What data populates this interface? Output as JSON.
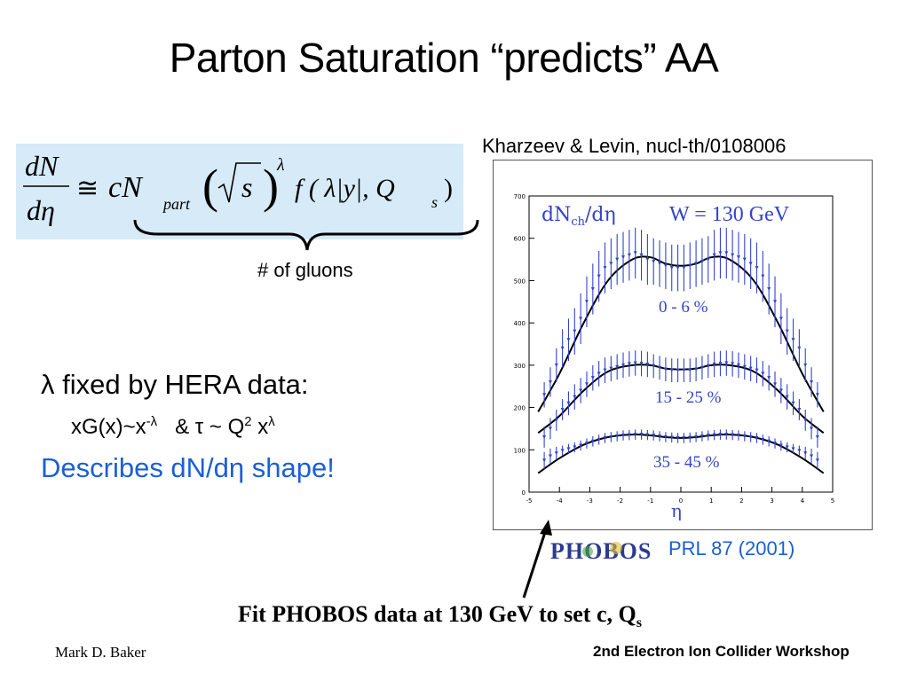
{
  "slide": {
    "title": "Parton Saturation “predicts” AA",
    "citation": "Kharzeev & Levin, nucl-th/0108006",
    "brace_label": "# of gluons",
    "lambda_text": "λ fixed by HERA data:",
    "xg_main": "xG(x)~x",
    "xg_sup": "-λ",
    "xg_mid": "& τ ~ Q",
    "xg_sup2": "2",
    "xg_tail": "x",
    "xg_sup3": "λ",
    "describes_text": "Describes dN/dη shape!",
    "prl_ref": "PRL 87 (2001)",
    "fit_main": "Fit PHOBOS data at 130 GeV to set c, Q",
    "fit_sub": "s",
    "author": "Mark D. Baker",
    "workshop": "2nd Electron Ion Collider Workshop",
    "logo_text": "PHOBOS"
  },
  "formula": {
    "num": "dN",
    "den": "dη",
    "approx": "≅",
    "cN": "cN",
    "part": "part",
    "sqrt_s": "s",
    "lambda": "λ",
    "f_args": "f ( λ|y|, Q",
    "Qs_sub": "s",
    "close": ")"
  },
  "colors": {
    "accent_blue": "#1a5fd6",
    "formula_bg": "#d6eaf8",
    "plot_data": "#3344cc",
    "plot_fit": "#000000"
  },
  "chart_data": {
    "type": "scatter",
    "title": "dNch/dη",
    "title_main": "dN",
    "title_sub": "ch",
    "title_tail": "/dη",
    "energy_label": "W = 130 GeV",
    "xlabel": "η",
    "ylabel": "",
    "xlim": [
      -5,
      5
    ],
    "ylim": [
      0,
      700
    ],
    "xticks": [
      -5,
      -4,
      -3,
      -2,
      -1,
      0,
      1,
      2,
      3,
      4,
      5
    ],
    "yticks": [
      0,
      100,
      200,
      300,
      400,
      500,
      600,
      700
    ],
    "series": [
      {
        "name": "0 - 6 %",
        "x": [
          -4.5,
          -4.3,
          -4.1,
          -3.9,
          -3.7,
          -3.5,
          -3.3,
          -3.1,
          -2.9,
          -2.7,
          -2.5,
          -2.3,
          -2.1,
          -1.9,
          -1.7,
          -1.5,
          -1.3,
          -1.1,
          -0.9,
          -0.7,
          -0.5,
          -0.3,
          -0.1,
          0.1,
          0.3,
          0.5,
          0.7,
          0.9,
          1.1,
          1.3,
          1.5,
          1.7,
          1.9,
          2.1,
          2.3,
          2.5,
          2.7,
          2.9,
          3.1,
          3.3,
          3.5,
          3.7,
          3.9,
          4.1,
          4.3,
          4.5
        ],
        "y": [
          230,
          260,
          300,
          340,
          360,
          380,
          410,
          450,
          480,
          510,
          530,
          540,
          550,
          555,
          560,
          565,
          560,
          550,
          545,
          540,
          535,
          530,
          530,
          530,
          535,
          540,
          545,
          550,
          560,
          565,
          565,
          560,
          555,
          550,
          540,
          530,
          510,
          480,
          450,
          410,
          380,
          360,
          340,
          300,
          260,
          230
        ],
        "err": [
          30,
          35,
          40,
          45,
          50,
          55,
          60,
          60,
          60,
          60,
          60,
          60,
          60,
          60,
          60,
          60,
          60,
          60,
          55,
          55,
          55,
          55,
          55,
          55,
          55,
          55,
          55,
          55,
          60,
          60,
          60,
          60,
          60,
          60,
          60,
          60,
          60,
          60,
          60,
          60,
          55,
          50,
          45,
          40,
          35,
          30
        ],
        "fit_x": [
          -4.7,
          -4.0,
          -3.2,
          -2.4,
          -1.6,
          -1.0,
          -0.5,
          0.0,
          0.5,
          1.0,
          1.6,
          2.4,
          3.2,
          4.0,
          4.7
        ],
        "fit_y": [
          190,
          280,
          400,
          500,
          550,
          555,
          540,
          535,
          540,
          555,
          550,
          500,
          400,
          280,
          190
        ]
      },
      {
        "name": "15 - 25 %",
        "x": [
          -4.5,
          -4.3,
          -4.1,
          -3.9,
          -3.7,
          -3.5,
          -3.3,
          -3.1,
          -2.9,
          -2.7,
          -2.5,
          -2.3,
          -2.1,
          -1.9,
          -1.7,
          -1.5,
          -1.3,
          -1.1,
          -0.9,
          -0.7,
          -0.5,
          -0.3,
          -0.1,
          0.1,
          0.3,
          0.5,
          0.7,
          0.9,
          1.1,
          1.3,
          1.5,
          1.7,
          1.9,
          2.1,
          2.3,
          2.5,
          2.7,
          2.9,
          3.1,
          3.3,
          3.5,
          3.7,
          3.9,
          4.1,
          4.3,
          4.5
        ],
        "y": [
          130,
          150,
          170,
          195,
          210,
          225,
          240,
          255,
          270,
          280,
          288,
          292,
          296,
          300,
          303,
          305,
          304,
          302,
          298,
          294,
          290,
          288,
          288,
          288,
          288,
          290,
          294,
          298,
          302,
          304,
          305,
          303,
          300,
          296,
          292,
          288,
          280,
          270,
          255,
          240,
          225,
          210,
          195,
          170,
          150,
          130
        ],
        "err": [
          25,
          25,
          25,
          25,
          28,
          30,
          30,
          30,
          30,
          30,
          30,
          30,
          30,
          30,
          30,
          30,
          30,
          30,
          28,
          28,
          28,
          28,
          28,
          28,
          28,
          28,
          28,
          28,
          30,
          30,
          30,
          30,
          30,
          30,
          30,
          30,
          30,
          30,
          30,
          30,
          30,
          28,
          25,
          25,
          25,
          25
        ],
        "fit_x": [
          -4.7,
          -4.0,
          -3.2,
          -2.4,
          -1.6,
          -1.0,
          -0.5,
          0.0,
          0.5,
          1.0,
          1.6,
          2.4,
          3.2,
          4.0,
          4.7
        ],
        "fit_y": [
          140,
          180,
          240,
          285,
          300,
          300,
          292,
          290,
          292,
          300,
          300,
          285,
          240,
          180,
          140
        ]
      },
      {
        "name": "35 - 45 %",
        "x": [
          -4.5,
          -4.3,
          -4.1,
          -3.9,
          -3.7,
          -3.5,
          -3.3,
          -3.1,
          -2.9,
          -2.7,
          -2.5,
          -2.3,
          -2.1,
          -1.9,
          -1.7,
          -1.5,
          -1.3,
          -1.1,
          -0.9,
          -0.7,
          -0.5,
          -0.3,
          -0.1,
          0.1,
          0.3,
          0.5,
          0.7,
          0.9,
          1.1,
          1.3,
          1.5,
          1.7,
          1.9,
          2.1,
          2.3,
          2.5,
          2.7,
          2.9,
          3.1,
          3.3,
          3.5,
          3.7,
          3.9,
          4.1,
          4.3,
          4.5
        ],
        "y": [
          75,
          85,
          92,
          98,
          102,
          106,
          110,
          115,
          120,
          124,
          128,
          130,
          132,
          134,
          135,
          136,
          136,
          135,
          134,
          132,
          130,
          129,
          128,
          128,
          129,
          130,
          132,
          134,
          135,
          136,
          136,
          135,
          134,
          132,
          130,
          128,
          124,
          120,
          115,
          110,
          106,
          102,
          98,
          92,
          85,
          75
        ],
        "err": [
          20,
          18,
          15,
          12,
          12,
          12,
          12,
          12,
          12,
          12,
          12,
          12,
          12,
          12,
          12,
          12,
          12,
          12,
          12,
          12,
          12,
          12,
          12,
          12,
          12,
          12,
          12,
          12,
          12,
          12,
          12,
          12,
          12,
          12,
          12,
          12,
          12,
          12,
          12,
          12,
          12,
          12,
          12,
          15,
          18,
          20
        ],
        "fit_x": [
          -4.7,
          -4.0,
          -3.2,
          -2.4,
          -1.6,
          -1.0,
          -0.5,
          0.0,
          0.5,
          1.0,
          1.6,
          2.4,
          3.2,
          4.0,
          4.7
        ],
        "fit_y": [
          45,
          80,
          112,
          130,
          136,
          134,
          130,
          128,
          130,
          134,
          136,
          130,
          112,
          80,
          45
        ]
      }
    ]
  }
}
